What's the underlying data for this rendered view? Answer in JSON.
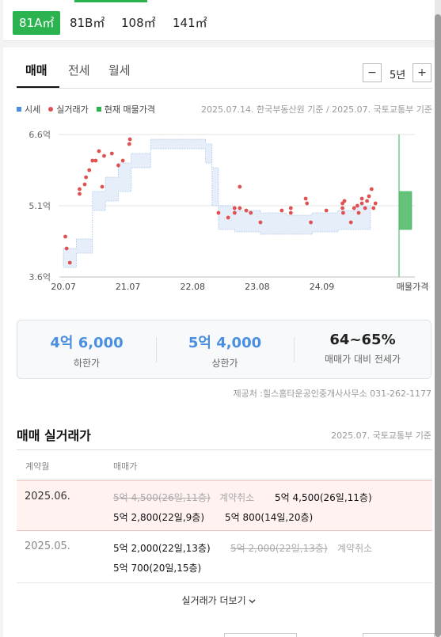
{
  "type_tabs": [
    "81A㎡",
    "81B㎡",
    "108㎡",
    "141㎡"
  ],
  "trade_tabs": [
    "매매",
    "전세",
    "월세"
  ],
  "period": {
    "minus": "−",
    "label": "5년",
    "plus": "+"
  },
  "legend": {
    "market": "시세",
    "actual": "실거래가",
    "listing": "현재 매물가격",
    "colors": {
      "market": "#4a8fe0",
      "actual": "#e05252",
      "listing": "#2bb34f"
    }
  },
  "source_note": "2025.07.14. 한국부동산원 기준 / 2025.07. 국토교통부 기준",
  "chart_data": {
    "type": "scatter",
    "y_ticks": [
      "6.6억",
      "5.1억",
      "3.6억"
    ],
    "ylim": [
      3.6,
      6.6
    ],
    "x_ticks": [
      "20.07",
      "21.07",
      "22.08",
      "23.08",
      "24.09",
      "매물가격"
    ],
    "xlim": [
      2020.5,
      2025.5
    ],
    "market_band": [
      {
        "x": 2020.55,
        "lo": 3.8,
        "hi": 4.2
      },
      {
        "x": 2020.75,
        "lo": 4.1,
        "hi": 4.4
      },
      {
        "x": 2020.95,
        "lo": 4.1,
        "hi": 4.4
      },
      {
        "x": 2021.0,
        "lo": 5.0,
        "hi": 5.4
      },
      {
        "x": 2021.2,
        "lo": 5.2,
        "hi": 5.7
      },
      {
        "x": 2021.4,
        "lo": 5.4,
        "hi": 6.0
      },
      {
        "x": 2021.6,
        "lo": 5.9,
        "hi": 6.2
      },
      {
        "x": 2021.9,
        "lo": 6.3,
        "hi": 6.5
      },
      {
        "x": 2022.3,
        "lo": 6.3,
        "hi": 6.5
      },
      {
        "x": 2022.6,
        "lo": 6.3,
        "hi": 6.5
      },
      {
        "x": 2022.75,
        "lo": 6.0,
        "hi": 6.4
      },
      {
        "x": 2022.85,
        "lo": 5.1,
        "hi": 5.9
      },
      {
        "x": 2022.95,
        "lo": 4.6,
        "hi": 5.1
      },
      {
        "x": 2023.2,
        "lo": 4.55,
        "hi": 5.0
      },
      {
        "x": 2023.6,
        "lo": 4.5,
        "hi": 4.95
      },
      {
        "x": 2024.0,
        "lo": 4.5,
        "hi": 4.9
      },
      {
        "x": 2024.4,
        "lo": 4.55,
        "hi": 4.95
      },
      {
        "x": 2024.8,
        "lo": 4.6,
        "hi": 5.0
      },
      {
        "x": 2025.1,
        "lo": 4.6,
        "hi": 5.1
      },
      {
        "x": 2025.3,
        "lo": 4.7,
        "hi": 5.15
      }
    ],
    "actual_points": [
      {
        "x": 2020.58,
        "y": 4.45
      },
      {
        "x": 2020.6,
        "y": 4.2
      },
      {
        "x": 2020.65,
        "y": 3.9
      },
      {
        "x": 2020.8,
        "y": 5.35
      },
      {
        "x": 2020.8,
        "y": 5.45
      },
      {
        "x": 2020.88,
        "y": 5.55
      },
      {
        "x": 2020.9,
        "y": 5.7
      },
      {
        "x": 2020.95,
        "y": 5.85
      },
      {
        "x": 2021.0,
        "y": 6.05
      },
      {
        "x": 2021.05,
        "y": 6.05
      },
      {
        "x": 2021.1,
        "y": 6.25
      },
      {
        "x": 2021.15,
        "y": 5.5
      },
      {
        "x": 2021.18,
        "y": 6.15
      },
      {
        "x": 2021.3,
        "y": 6.2
      },
      {
        "x": 2021.4,
        "y": 5.95
      },
      {
        "x": 2021.47,
        "y": 6.05
      },
      {
        "x": 2021.57,
        "y": 6.4
      },
      {
        "x": 2021.58,
        "y": 6.5
      },
      {
        "x": 2022.95,
        "y": 4.95
      },
      {
        "x": 2023.1,
        "y": 4.85
      },
      {
        "x": 2023.2,
        "y": 4.95
      },
      {
        "x": 2023.2,
        "y": 5.05
      },
      {
        "x": 2023.28,
        "y": 5.05
      },
      {
        "x": 2023.28,
        "y": 5.5
      },
      {
        "x": 2023.38,
        "y": 5.0
      },
      {
        "x": 2023.45,
        "y": 4.95
      },
      {
        "x": 2023.6,
        "y": 4.75
      },
      {
        "x": 2023.93,
        "y": 5.0
      },
      {
        "x": 2024.07,
        "y": 4.95
      },
      {
        "x": 2024.07,
        "y": 5.05
      },
      {
        "x": 2024.3,
        "y": 5.25
      },
      {
        "x": 2024.32,
        "y": 5.15
      },
      {
        "x": 2024.38,
        "y": 4.75
      },
      {
        "x": 2024.62,
        "y": 5.0
      },
      {
        "x": 2024.87,
        "y": 5.05
      },
      {
        "x": 2024.87,
        "y": 5.15
      },
      {
        "x": 2024.88,
        "y": 4.95
      },
      {
        "x": 2024.9,
        "y": 5.2
      },
      {
        "x": 2025.0,
        "y": 4.75
      },
      {
        "x": 2025.05,
        "y": 5.05
      },
      {
        "x": 2025.1,
        "y": 5.1
      },
      {
        "x": 2025.12,
        "y": 4.95
      },
      {
        "x": 2025.17,
        "y": 5.15
      },
      {
        "x": 2025.17,
        "y": 5.25
      },
      {
        "x": 2025.22,
        "y": 5.05
      },
      {
        "x": 2025.25,
        "y": 5.2
      },
      {
        "x": 2025.28,
        "y": 5.3
      },
      {
        "x": 2025.32,
        "y": 5.45
      },
      {
        "x": 2025.35,
        "y": 5.05
      },
      {
        "x": 2025.38,
        "y": 5.15
      }
    ],
    "listing_range": {
      "lo": 4.6,
      "hi": 5.4
    },
    "grid": true
  },
  "summary": [
    {
      "value": "4억 6,000",
      "label": "하한가"
    },
    {
      "value": "5억 4,000",
      "label": "상한가"
    },
    {
      "value": "64~65%",
      "label": "매매가 대비 전세가"
    }
  ],
  "provider": "제공처 :힐스홈타운공인중개사사무소 031-262-1177",
  "section": {
    "title": "매매 실거래가",
    "source": "2025.07. 국토교통부 기준"
  },
  "table": {
    "headers": [
      "계약월",
      "매매가"
    ],
    "rows": [
      {
        "month": "2025.06.",
        "line1_cancel": "5억 4,500(26일,11층)",
        "cancel_tag": "계약취소",
        "line1_deal": "5억 4,500(26일,11층)",
        "line2a": "5억 2,800(22일,9층)",
        "line2b": "5억 800(14일,20층)"
      },
      {
        "month": "2025.05.",
        "line1_deal": "5억 2,000(22일,13층)",
        "line1_cancel": "5억 2,000(22일,13층)",
        "cancel_tag": "계약취소",
        "line2a": "5억 700(20일,15층)"
      }
    ]
  },
  "more_label": "실거래가 더보기"
}
